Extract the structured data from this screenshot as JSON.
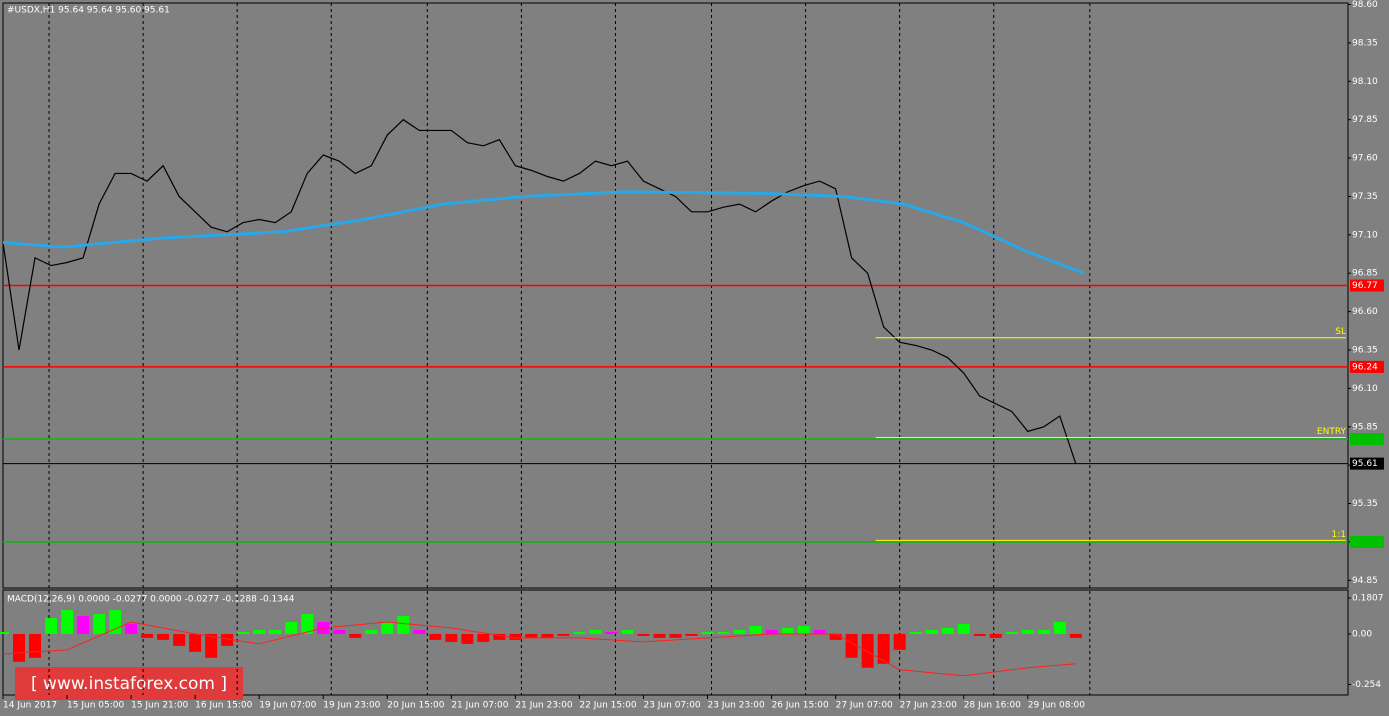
{
  "chart_data": [
    {
      "type": "line",
      "title": "#USDX,H1  95.64 95.64 95.60 95.61",
      "xlim": [
        0,
        336
      ],
      "ylim": [
        94.8,
        98.61
      ],
      "xgrid": [
        11.5,
        35,
        58.5,
        82,
        106,
        129.5,
        153,
        177,
        200.5,
        224,
        247.5,
        271.5
      ],
      "yticks": [
        {
          "value": 98.6,
          "label": "98.60"
        },
        {
          "value": 98.35,
          "label": "98.35"
        },
        {
          "value": 98.1,
          "label": "98.10"
        },
        {
          "value": 97.85,
          "label": "97.85"
        },
        {
          "value": 97.6,
          "label": "97.60"
        },
        {
          "value": 97.35,
          "label": "97.35"
        },
        {
          "value": 97.1,
          "label": "97.10"
        },
        {
          "value": 96.85,
          "label": "96.85"
        },
        {
          "value": 96.6,
          "label": "96.60"
        },
        {
          "value": 96.35,
          "label": "96.35"
        },
        {
          "value": 96.1,
          "label": "96.10"
        },
        {
          "value": 95.85,
          "label": "95.85"
        },
        {
          "value": 95.6,
          "label": "95.60"
        },
        {
          "value": 95.35,
          "label": "95.35"
        },
        {
          "value": 95.1,
          "label": "95.10"
        },
        {
          "value": 94.85,
          "label": "94.85"
        }
      ],
      "series": [
        {
          "color": "#000000",
          "x": [
            0,
            4,
            8,
            12,
            16,
            20,
            24,
            28,
            32,
            36,
            40,
            44,
            48,
            52,
            56,
            60,
            64,
            68,
            72,
            76,
            80,
            84,
            88,
            92,
            96,
            100,
            104,
            108,
            112,
            116,
            120,
            124,
            128,
            132,
            136,
            140,
            144,
            148,
            152,
            156,
            160,
            164,
            168,
            172,
            176,
            180,
            184,
            188,
            192,
            196,
            200,
            204,
            208,
            212,
            216,
            220,
            224,
            228,
            232,
            236,
            240,
            244,
            248,
            252,
            256,
            260,
            264,
            268
          ],
          "values": [
            97.05,
            96.35,
            96.95,
            96.9,
            96.92,
            96.95,
            97.3,
            97.5,
            97.5,
            97.45,
            97.55,
            97.35,
            97.25,
            97.15,
            97.12,
            97.18,
            97.2,
            97.18,
            97.25,
            97.5,
            97.62,
            97.58,
            97.5,
            97.55,
            97.75,
            97.85,
            97.78,
            97.78,
            97.78,
            97.7,
            97.68,
            97.72,
            97.55,
            97.52,
            97.48,
            97.45,
            97.5,
            97.58,
            97.55,
            97.58,
            97.45,
            97.4,
            97.35,
            97.25,
            97.25,
            97.28,
            97.3,
            97.25,
            97.32,
            97.38,
            97.42,
            97.45,
            97.4,
            96.95,
            96.85,
            96.5,
            96.4,
            96.38,
            96.35,
            96.3,
            96.2,
            96.05,
            96.0,
            95.95,
            95.82,
            95.85,
            95.92,
            95.61
          ]
        },
        {
          "color": "#29a8e8",
          "x": [
            0,
            15,
            40,
            70,
            90,
            110,
            130,
            155,
            190,
            210,
            225,
            240,
            255,
            270
          ],
          "values": [
            97.05,
            97.02,
            97.08,
            97.12,
            97.2,
            97.3,
            97.35,
            97.38,
            97.37,
            97.35,
            97.3,
            97.18,
            97.0,
            96.85
          ]
        }
      ],
      "levels": [
        {
          "value": 96.77,
          "color": "#ff0000"
        },
        {
          "value": 96.24,
          "color": "#ff0000"
        },
        {
          "value": 95.77,
          "color": "#00c000"
        },
        {
          "value": 95.1,
          "color": "#00c000"
        },
        {
          "value": 95.61,
          "color": "#000000"
        }
      ],
      "trade_start": 218,
      "trade_color": "#ffff00",
      "trade_lines": [
        {
          "name": "SL",
          "value": 96.43
        },
        {
          "name": "ENTRY",
          "value": 95.78
        },
        {
          "name": "1:1",
          "value": 95.11
        }
      ]
    },
    {
      "type": "macd",
      "title": "MACD(12,26,9) 0.0000 -0.0277 0.0000 -0.0277 -0.1288 -0.1344",
      "xlim": [
        0,
        336
      ],
      "ylim": [
        -0.307,
        0.221
      ],
      "yticks": [
        {
          "value": 0.1807,
          "label": "0.1807"
        },
        {
          "value": 0.0,
          "label": "0.00"
        },
        {
          "value": -0.254,
          "label": "-0.254"
        }
      ],
      "xticks": [
        {
          "value": 0,
          "label": "14 Jun 2017"
        },
        {
          "value": 16,
          "label": "15 Jun 05:00"
        },
        {
          "value": 32,
          "label": "15 Jun 21:00"
        },
        {
          "value": 48,
          "label": "16 Jun 15:00"
        },
        {
          "value": 64,
          "label": "19 Jun 07:00"
        },
        {
          "value": 80,
          "label": "19 Jun 23:00"
        },
        {
          "value": 96,
          "label": "20 Jun 15:00"
        },
        {
          "value": 112,
          "label": "21 Jun 07:00"
        },
        {
          "value": 128,
          "label": "21 Jun 23:00"
        },
        {
          "value": 144,
          "label": "22 Jun 15:00"
        },
        {
          "value": 160,
          "label": "23 Jun 07:00"
        },
        {
          "value": 176,
          "label": "23 Jun 23:00"
        },
        {
          "value": 192,
          "label": "26 Jun 15:00"
        },
        {
          "value": 208,
          "label": "27 Jun 07:00"
        },
        {
          "value": 224,
          "label": "27 Jun 23:00"
        },
        {
          "value": 240,
          "label": "28 Jun 16:00"
        },
        {
          "value": 256,
          "label": "29 Jun 08:00"
        }
      ],
      "colors": {
        "rising": "#00ff00",
        "falling": "#ff00ff",
        "negative": "#ff0000"
      },
      "x": [
        0,
        4,
        8,
        12,
        16,
        20,
        24,
        28,
        32,
        36,
        40,
        44,
        48,
        52,
        56,
        60,
        64,
        68,
        72,
        76,
        80,
        84,
        88,
        92,
        96,
        100,
        104,
        108,
        112,
        116,
        120,
        124,
        128,
        132,
        136,
        140,
        144,
        148,
        152,
        156,
        160,
        164,
        168,
        172,
        176,
        180,
        184,
        188,
        192,
        196,
        200,
        204,
        208,
        212,
        216,
        220,
        224,
        228,
        232,
        236,
        240,
        244,
        248,
        252,
        256,
        260,
        264,
        268
      ],
      "values": [
        0.01,
        -0.14,
        -0.12,
        0.08,
        0.12,
        0.09,
        0.1,
        0.12,
        0.05,
        -0.02,
        -0.03,
        -0.06,
        -0.09,
        -0.12,
        -0.06,
        0.01,
        0.02,
        0.02,
        0.06,
        0.1,
        0.06,
        0.02,
        -0.02,
        0.02,
        0.06,
        0.09,
        0.02,
        -0.03,
        -0.04,
        -0.05,
        -0.04,
        -0.03,
        -0.03,
        -0.02,
        -0.02,
        -0.01,
        0.01,
        0.02,
        0.01,
        0.02,
        -0.01,
        -0.02,
        -0.02,
        -0.01,
        0.01,
        0.01,
        0.02,
        0.04,
        0.02,
        0.03,
        0.04,
        0.02,
        -0.03,
        -0.12,
        -0.17,
        -0.15,
        -0.08,
        0.01,
        0.02,
        0.03,
        0.05,
        -0.01,
        -0.02,
        0.01,
        0.02,
        0.02,
        0.06,
        -0.02
      ],
      "signal": {
        "color": "#ff2020",
        "x": [
          0,
          16,
          32,
          48,
          64,
          80,
          96,
          112,
          128,
          144,
          160,
          176,
          192,
          208,
          224,
          240,
          256,
          268
        ],
        "values": [
          -0.1,
          -0.08,
          0.06,
          0.0,
          -0.05,
          0.03,
          0.06,
          0.03,
          -0.02,
          -0.02,
          -0.04,
          -0.02,
          0.0,
          0.0,
          -0.18,
          -0.21,
          -0.17,
          -0.15
        ]
      }
    }
  ],
  "watermark": "[ www.instaforex.com ]"
}
